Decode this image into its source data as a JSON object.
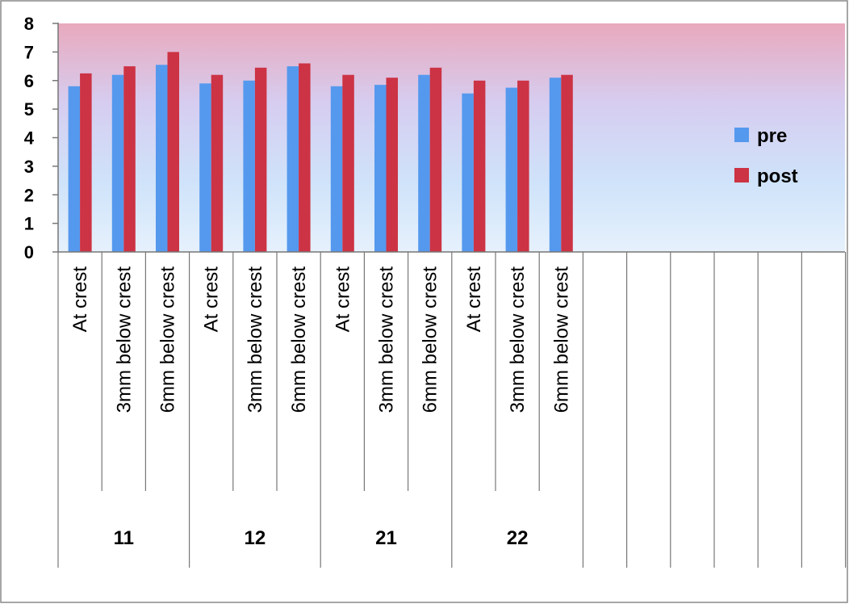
{
  "chart_data": {
    "type": "bar",
    "title": "",
    "xlabel": "",
    "ylabel": "",
    "ylim": [
      0,
      8
    ],
    "yticks": [
      0,
      1,
      2,
      3,
      4,
      5,
      6,
      7,
      8
    ],
    "grid": false,
    "legend_position": "right",
    "categories": [
      "At crest",
      "3mm below crest",
      "6mm below crest",
      "At crest",
      "3mm below crest",
      "6mm below crest",
      "At crest",
      "3mm below crest",
      "6mm below crest",
      "At crest",
      "3mm below crest",
      "6mm below crest"
    ],
    "groups": [
      {
        "label": "11",
        "span": 3
      },
      {
        "label": "12",
        "span": 3
      },
      {
        "label": "21",
        "span": 3
      },
      {
        "label": "22",
        "span": 3
      }
    ],
    "empty_category_slots": 6,
    "series": [
      {
        "name": "pre",
        "color": "#5599ee",
        "values": [
          5.8,
          6.2,
          6.55,
          5.9,
          6.0,
          6.5,
          5.8,
          5.85,
          6.2,
          5.55,
          5.75,
          6.1
        ]
      },
      {
        "name": "post",
        "color": "#cc3344",
        "values": [
          6.25,
          6.5,
          7.0,
          6.2,
          6.45,
          6.6,
          6.2,
          6.1,
          6.45,
          6.0,
          6.0,
          6.2
        ]
      }
    ]
  }
}
